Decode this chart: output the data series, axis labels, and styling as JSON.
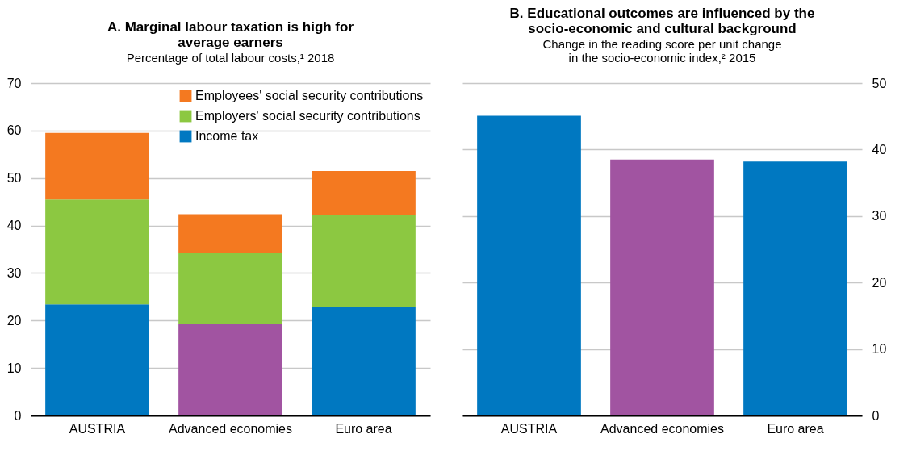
{
  "chart_data": [
    {
      "type": "bar",
      "title": "A. Marginal labour taxation is high for average earners",
      "subtitle": "Percentage of total labour costs,¹ 2018",
      "categories": [
        "AUSTRIA",
        "Advanced economies",
        "Euro area"
      ],
      "stacked": true,
      "series": [
        {
          "name": "Income tax",
          "color": "#0078c1",
          "colors": [
            "#0078c1",
            "#a154a1",
            "#0078c1"
          ],
          "values": [
            23.4,
            19.2,
            22.9
          ]
        },
        {
          "name": "Employers' social security contributions",
          "color": "#8cc841",
          "values": [
            22.1,
            15.0,
            19.3
          ]
        },
        {
          "name": "Employees' social security contributions",
          "color": "#f47920",
          "values": [
            14.0,
            8.2,
            9.3
          ]
        }
      ],
      "ylim": [
        0,
        70
      ],
      "yticks": [
        0,
        10,
        20,
        30,
        40,
        50,
        60,
        70
      ],
      "grid": "y",
      "legend": "top right"
    },
    {
      "type": "bar",
      "title": "B. Educational outcomes are influenced by the socio-economic and cultural background",
      "subtitle": "Change in the reading score per unit change in the socio-economic index,² 2015",
      "categories": [
        "AUSTRIA",
        "Advanced economies",
        "Euro area"
      ],
      "series": [
        {
          "axis": "y2",
          "color": "#0078c1",
          "colors": [
            "#0078c1",
            "#a154a1",
            "#0078c1"
          ],
          "values": [
            45.1,
            38.5,
            38.2
          ]
        }
      ],
      "y2lim": [
        0,
        50
      ],
      "y2ticks": [
        0,
        10,
        20,
        30,
        40,
        50
      ],
      "grid": "y"
    }
  ]
}
